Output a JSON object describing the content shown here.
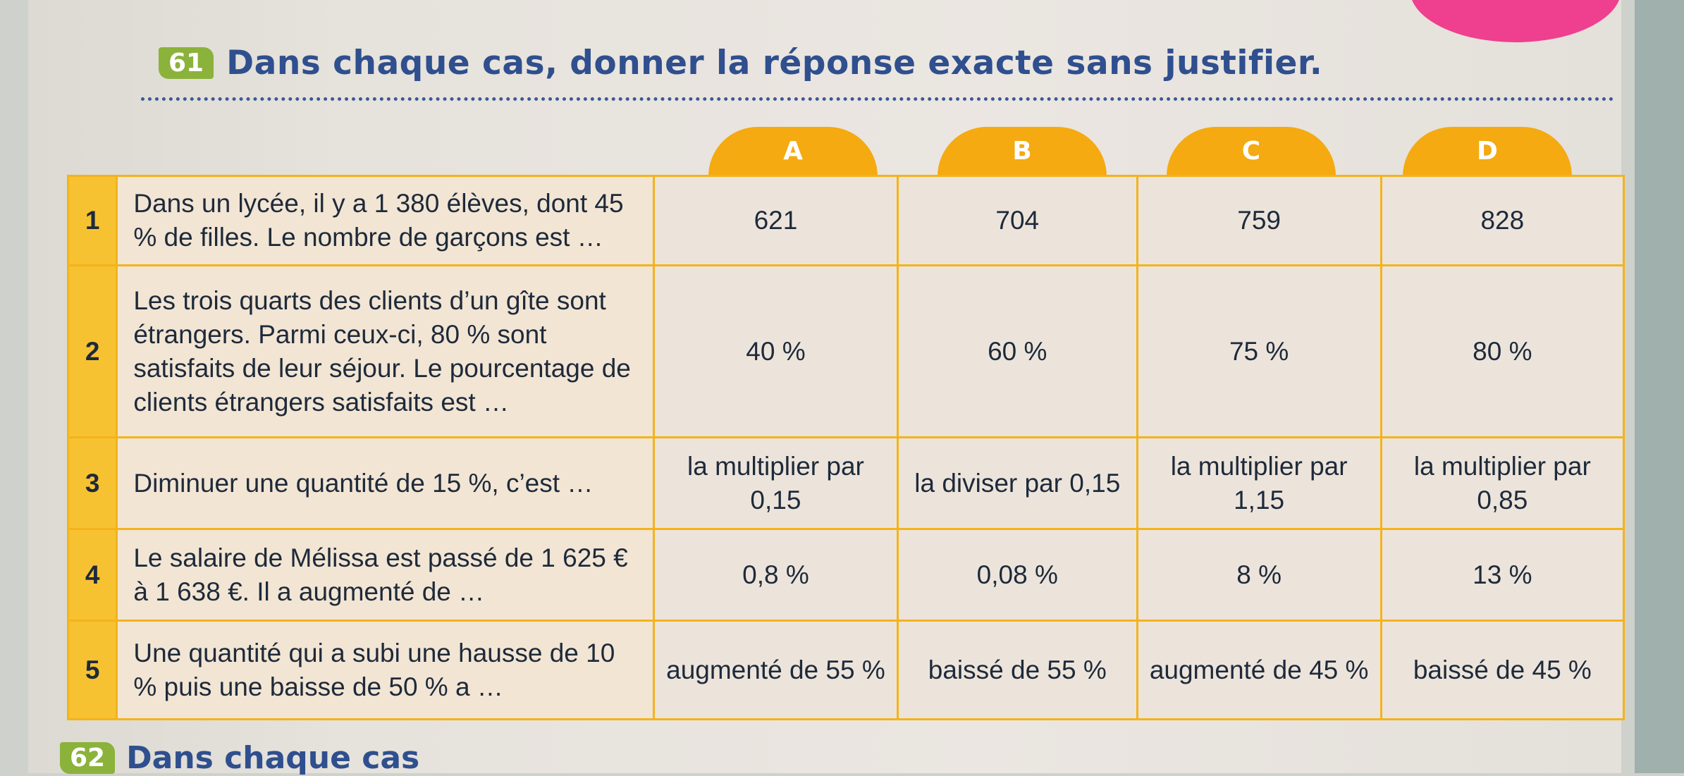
{
  "exercise": {
    "number": "61",
    "title": "Dans chaque cas, donner la réponse exacte sans justifier."
  },
  "columns": [
    "A",
    "B",
    "C",
    "D"
  ],
  "rows": [
    {
      "num": "1",
      "question": "Dans un lycée, il y a 1 380 élèves, dont 45 % de filles. Le nombre de garçons est …",
      "answers": [
        "621",
        "704",
        "759",
        "828"
      ]
    },
    {
      "num": "2",
      "question": "Les trois quarts des clients d’un gîte sont étrangers. Parmi ceux-ci, 80 % sont satisfaits de leur séjour. Le pourcentage de clients étrangers satisfaits est …",
      "answers": [
        "40 %",
        "60 %",
        "75 %",
        "80 %"
      ]
    },
    {
      "num": "3",
      "question": "Diminuer une quantité de 15 %, c’est …",
      "answers": [
        "la multiplier par 0,15",
        "la diviser par 0,15",
        "la multiplier par 1,15",
        "la multiplier par 0,85"
      ]
    },
    {
      "num": "4",
      "question": "Le salaire de Mélissa est passé de 1 625 € à 1 638 €. Il a augmenté de …",
      "answers": [
        "0,8 %",
        "0,08 %",
        "8 %",
        "13 %"
      ]
    },
    {
      "num": "5",
      "question": "Une quantité qui a subi une hausse de 10 % puis une baisse de 50 % a …",
      "answers": [
        "augmenté de 55 %",
        "baissé de 55 %",
        "augmenté de 45 %",
        "baissé de 45 %"
      ]
    }
  ],
  "next_exercise": {
    "number": "62",
    "title": "Dans chaque cas"
  }
}
